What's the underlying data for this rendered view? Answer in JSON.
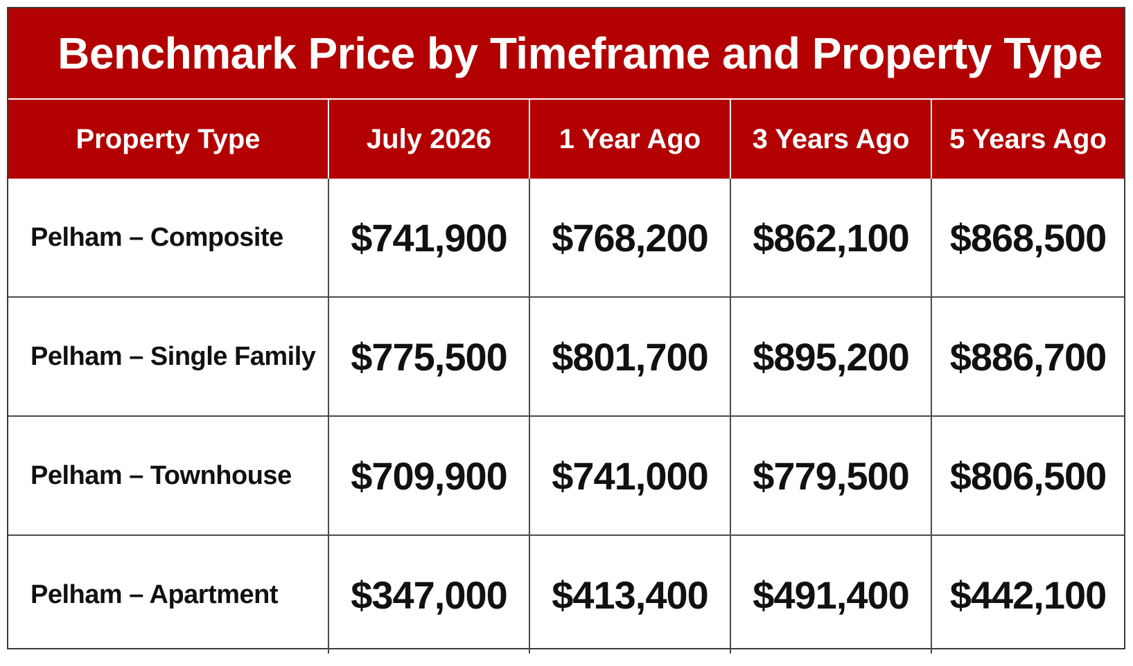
{
  "title": "Benchmark Price by Timeframe and Property Type",
  "colors": {
    "header_background": "#b30000",
    "header_text": "#ffffff",
    "body_text": "#111111",
    "grid_lines": "#4a4a4a"
  },
  "chart_data": {
    "type": "table",
    "title": "Benchmark Price by Timeframe and Property Type",
    "columns": [
      "Property Type",
      "July 2026",
      "1 Year Ago",
      "3 Years Ago",
      "5 Years Ago"
    ],
    "rows": [
      {
        "type": "Pelham – Composite",
        "values": [
          "$741,900",
          "$768,200",
          "$862,100",
          "$868,500"
        ]
      },
      {
        "type": "Pelham – Single Family",
        "values": [
          "$775,500",
          "$801,700",
          "$895,200",
          "$886,700"
        ]
      },
      {
        "type": "Pelham – Townhouse",
        "values": [
          "$709,900",
          "$741,000",
          "$779,500",
          "$806,500"
        ]
      },
      {
        "type": "Pelham – Apartment",
        "values": [
          "$347,000",
          "$413,400",
          "$491,400",
          "$442,100"
        ]
      }
    ]
  }
}
